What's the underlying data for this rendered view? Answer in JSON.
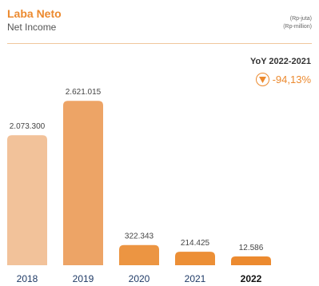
{
  "chart_data": {
    "type": "bar",
    "title": "Laba Neto",
    "subtitle": "Net Income",
    "unit_lines": [
      "(Rp-juta)",
      "(Rp-million)"
    ],
    "categories": [
      "2018",
      "2019",
      "2020",
      "2021",
      "2022"
    ],
    "values": [
      2073300,
      2621015,
      322343,
      214425,
      12586
    ],
    "value_labels": [
      "2.073.300",
      "2.621.015",
      "322.343",
      "214.425",
      "12.586"
    ],
    "highlight_category": "2022",
    "bar_colors": [
      "#f2c29a",
      "#eda466",
      "#ec9542",
      "#ec8f36",
      "#ec8a2f"
    ],
    "xlabel": "",
    "ylabel": "",
    "ylim": [
      0,
      2700000
    ],
    "grid": false,
    "legend": "none"
  },
  "yoy": {
    "label": "YoY 2022-2021",
    "value": "-94,13%",
    "icon": "down-triangle-icon",
    "color": "#ec8a2f"
  },
  "accent": "#ec8a2f"
}
